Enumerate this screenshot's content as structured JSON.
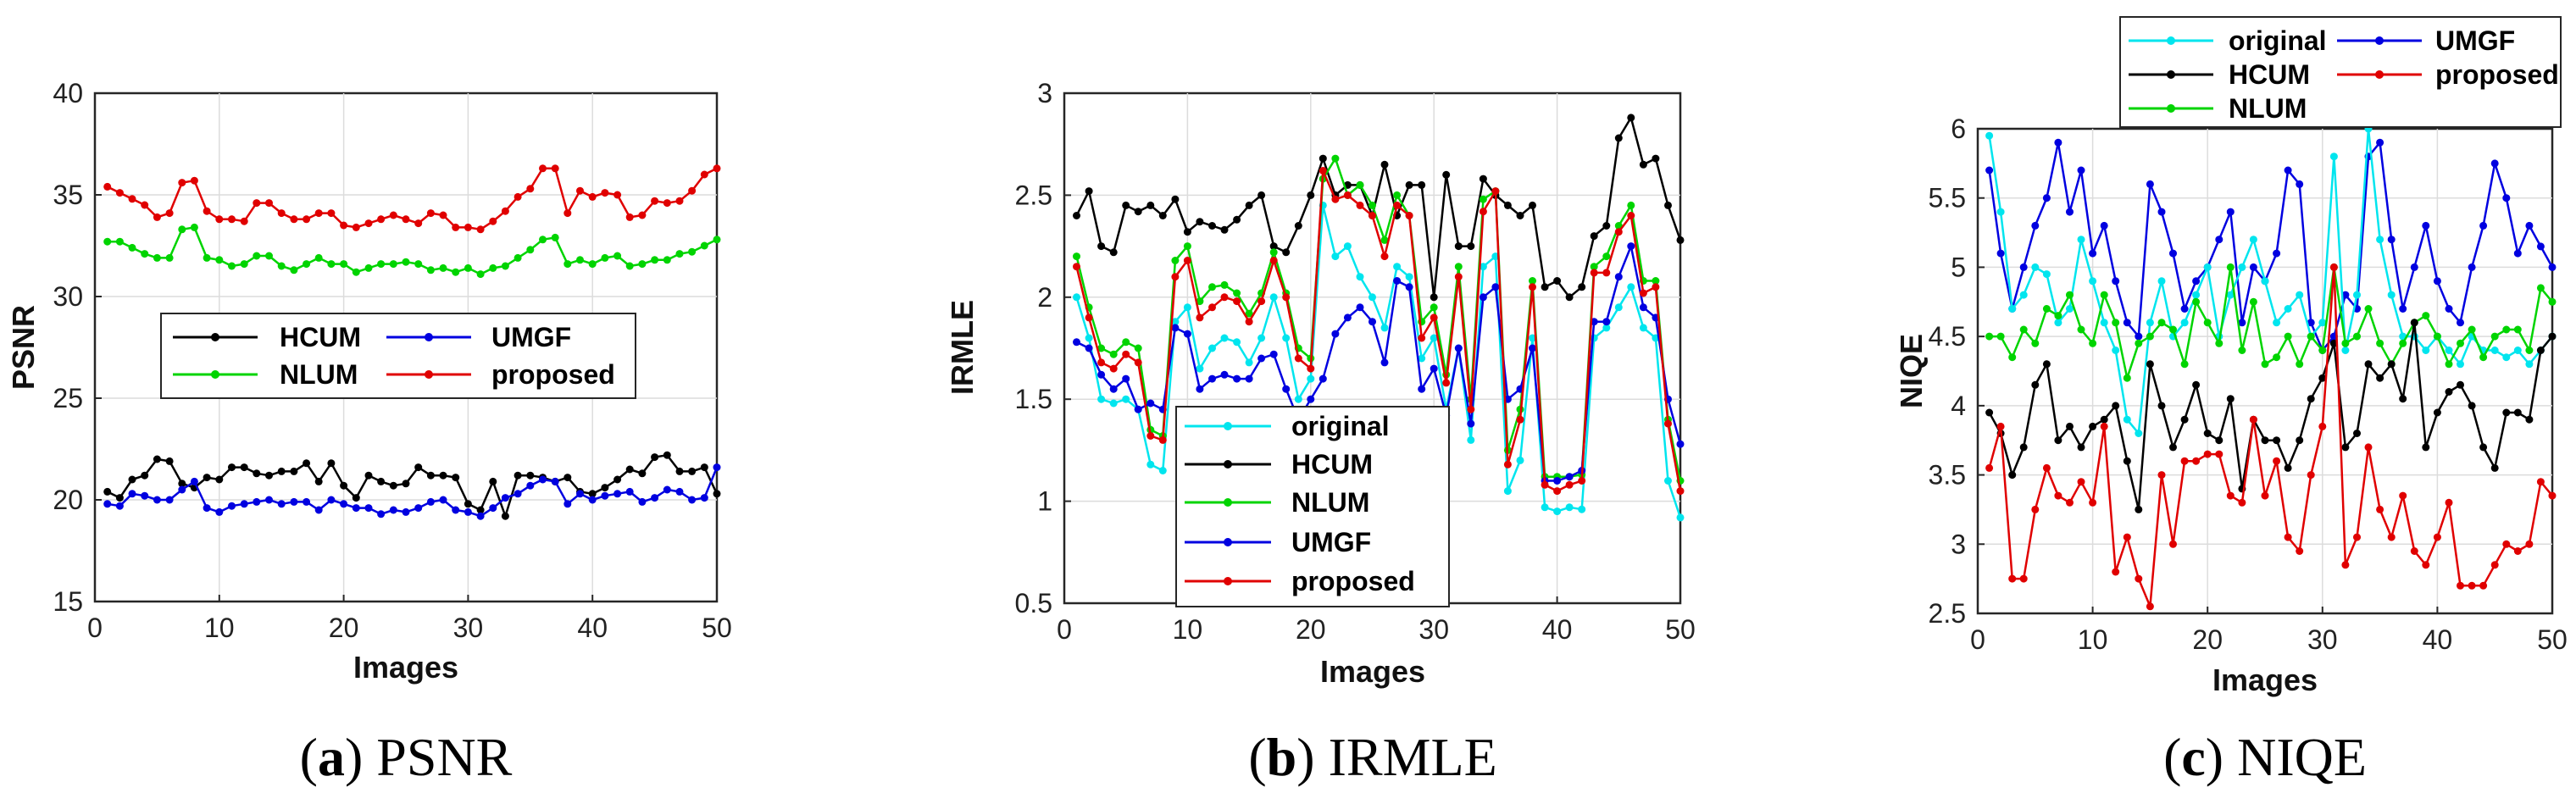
{
  "figure": {
    "panels": [
      {
        "id": "psnr",
        "caption_letter": "a",
        "caption_text": "PSNR"
      },
      {
        "id": "irmle",
        "caption_letter": "b",
        "caption_text": "IRMLE"
      },
      {
        "id": "niqe",
        "caption_letter": "c",
        "caption_text": "NIQE"
      }
    ]
  },
  "colors": {
    "original": "#00e5ee",
    "HCUM": "#000000",
    "NLUM": "#00d400",
    "UMGF": "#0000e0",
    "proposed": "#e00000"
  },
  "chart_data": [
    {
      "type": "line",
      "title": "(a) PSNR",
      "xlabel": "Images",
      "ylabel": "PSNR",
      "xlim": [
        0,
        50
      ],
      "ylim": [
        15,
        40
      ],
      "xticks": [
        0,
        10,
        20,
        30,
        40,
        50
      ],
      "yticks": [
        15,
        20,
        25,
        30,
        35,
        40
      ],
      "grid": true,
      "legend_placement": "center",
      "legend_columns": 2,
      "x": [
        1,
        2,
        3,
        4,
        5,
        6,
        7,
        8,
        9,
        10,
        11,
        12,
        13,
        14,
        15,
        16,
        17,
        18,
        19,
        20,
        21,
        22,
        23,
        24,
        25,
        26,
        27,
        28,
        29,
        30,
        31,
        32,
        33,
        34,
        35,
        36,
        37,
        38,
        39,
        40,
        41,
        42,
        43,
        44,
        45,
        46,
        47,
        48,
        49,
        50
      ],
      "series": [
        {
          "name": "HCUM",
          "values": [
            20.4,
            20.1,
            21.0,
            21.2,
            22.0,
            21.9,
            20.8,
            20.6,
            21.1,
            21.0,
            21.6,
            21.6,
            21.3,
            21.2,
            21.4,
            21.4,
            21.8,
            20.9,
            21.8,
            20.7,
            20.1,
            21.2,
            20.9,
            20.7,
            20.8,
            21.6,
            21.2,
            21.2,
            21.1,
            19.8,
            19.5,
            20.9,
            19.2,
            21.2,
            21.2,
            21.1,
            20.9,
            21.1,
            20.4,
            20.3,
            20.6,
            21.0,
            21.5,
            21.3,
            22.1,
            22.2,
            21.4,
            21.4,
            21.6,
            20.3
          ]
        },
        {
          "name": "UMGF",
          "values": [
            19.8,
            19.7,
            20.3,
            20.2,
            20.0,
            20.0,
            20.5,
            20.9,
            19.6,
            19.4,
            19.7,
            19.8,
            19.9,
            20.0,
            19.8,
            19.9,
            19.9,
            19.5,
            20.0,
            19.8,
            19.6,
            19.6,
            19.3,
            19.5,
            19.4,
            19.6,
            19.9,
            20.0,
            19.5,
            19.4,
            19.2,
            19.6,
            20.1,
            20.3,
            20.7,
            21.0,
            20.9,
            19.8,
            20.3,
            20.0,
            20.2,
            20.3,
            20.4,
            19.9,
            20.1,
            20.5,
            20.4,
            20.0,
            20.1,
            21.6
          ]
        },
        {
          "name": "NLUM",
          "values": [
            32.7,
            32.7,
            32.4,
            32.1,
            31.9,
            31.9,
            33.3,
            33.4,
            31.9,
            31.8,
            31.5,
            31.6,
            32.0,
            32.0,
            31.5,
            31.3,
            31.6,
            31.9,
            31.6,
            31.6,
            31.2,
            31.4,
            31.6,
            31.6,
            31.7,
            31.6,
            31.3,
            31.4,
            31.2,
            31.4,
            31.1,
            31.4,
            31.5,
            31.9,
            32.3,
            32.8,
            32.9,
            31.6,
            31.8,
            31.6,
            31.9,
            32.0,
            31.5,
            31.6,
            31.8,
            31.8,
            32.1,
            32.2,
            32.5,
            32.8
          ]
        },
        {
          "name": "proposed",
          "values": [
            35.4,
            35.1,
            34.8,
            34.5,
            33.9,
            34.1,
            35.6,
            35.7,
            34.2,
            33.8,
            33.8,
            33.7,
            34.6,
            34.6,
            34.1,
            33.8,
            33.8,
            34.1,
            34.1,
            33.5,
            33.4,
            33.6,
            33.8,
            34.0,
            33.8,
            33.6,
            34.1,
            34.0,
            33.4,
            33.4,
            33.3,
            33.7,
            34.2,
            34.9,
            35.3,
            36.3,
            36.3,
            34.1,
            35.2,
            34.9,
            35.1,
            35.0,
            33.9,
            34.0,
            34.7,
            34.6,
            34.7,
            35.2,
            36.0,
            36.3
          ]
        }
      ]
    },
    {
      "type": "line",
      "title": "(b) IRMLE",
      "xlabel": "Images",
      "ylabel": "IRMLE",
      "xlim": [
        0,
        50
      ],
      "ylim": [
        0.5,
        3
      ],
      "xticks": [
        0,
        10,
        20,
        30,
        40,
        50
      ],
      "yticks": [
        0.5,
        1,
        1.5,
        2,
        2.5,
        3
      ],
      "grid": true,
      "legend_placement": "lower-center",
      "legend_columns": 1,
      "x": [
        1,
        2,
        3,
        4,
        5,
        6,
        7,
        8,
        9,
        10,
        11,
        12,
        13,
        14,
        15,
        16,
        17,
        18,
        19,
        20,
        21,
        22,
        23,
        24,
        25,
        26,
        27,
        28,
        29,
        30,
        31,
        32,
        33,
        34,
        35,
        36,
        37,
        38,
        39,
        40,
        41,
        42,
        43,
        44,
        45,
        46,
        47,
        48,
        49,
        50
      ],
      "series": [
        {
          "name": "original",
          "values": [
            2.0,
            1.8,
            1.5,
            1.48,
            1.5,
            1.45,
            1.18,
            1.15,
            1.88,
            1.95,
            1.65,
            1.75,
            1.8,
            1.78,
            1.68,
            1.8,
            2.0,
            1.8,
            1.5,
            1.6,
            2.45,
            2.2,
            2.25,
            2.1,
            2.0,
            1.85,
            2.15,
            2.1,
            1.7,
            1.8,
            1.45,
            1.75,
            1.3,
            2.15,
            2.2,
            1.05,
            1.2,
            1.8,
            0.97,
            0.95,
            0.97,
            0.96,
            1.8,
            1.85,
            1.95,
            2.05,
            1.85,
            1.8,
            1.1,
            0.92
          ]
        },
        {
          "name": "HCUM",
          "values": [
            2.4,
            2.52,
            2.25,
            2.22,
            2.45,
            2.42,
            2.45,
            2.4,
            2.48,
            2.32,
            2.37,
            2.35,
            2.33,
            2.38,
            2.45,
            2.5,
            2.25,
            2.22,
            2.35,
            2.5,
            2.68,
            2.5,
            2.55,
            2.55,
            2.4,
            2.65,
            2.4,
            2.55,
            2.55,
            2.0,
            2.6,
            2.25,
            2.25,
            2.58,
            2.5,
            2.45,
            2.4,
            2.45,
            2.05,
            2.08,
            2.0,
            2.05,
            2.3,
            2.35,
            2.78,
            2.88,
            2.65,
            2.68,
            2.45,
            2.28
          ]
        },
        {
          "name": "NLUM",
          "values": [
            2.2,
            1.95,
            1.75,
            1.72,
            1.78,
            1.75,
            1.35,
            1.32,
            2.18,
            2.25,
            1.98,
            2.05,
            2.06,
            2.02,
            1.92,
            2.02,
            2.22,
            2.02,
            1.75,
            1.7,
            2.58,
            2.68,
            2.5,
            2.55,
            2.45,
            2.28,
            2.5,
            2.4,
            1.88,
            1.95,
            1.62,
            2.15,
            1.5,
            2.48,
            2.52,
            1.25,
            1.45,
            2.08,
            1.12,
            1.12,
            1.12,
            1.13,
            2.15,
            2.2,
            2.35,
            2.45,
            2.08,
            2.08,
            1.4,
            1.1
          ]
        },
        {
          "name": "UMGF",
          "values": [
            1.78,
            1.75,
            1.62,
            1.55,
            1.6,
            1.45,
            1.48,
            1.45,
            1.85,
            1.82,
            1.55,
            1.6,
            1.62,
            1.6,
            1.6,
            1.7,
            1.72,
            1.55,
            1.4,
            1.5,
            1.6,
            1.82,
            1.9,
            1.95,
            1.88,
            1.68,
            2.08,
            2.05,
            1.55,
            1.65,
            1.42,
            1.75,
            1.38,
            2.0,
            2.05,
            1.5,
            1.55,
            1.75,
            1.1,
            1.1,
            1.12,
            1.15,
            1.88,
            1.88,
            2.1,
            2.25,
            1.95,
            1.9,
            1.5,
            1.28
          ]
        },
        {
          "name": "proposed",
          "values": [
            2.15,
            1.9,
            1.68,
            1.65,
            1.72,
            1.68,
            1.32,
            1.3,
            2.1,
            2.18,
            1.9,
            1.95,
            2.0,
            1.98,
            1.88,
            1.98,
            2.18,
            2.0,
            1.7,
            1.65,
            2.62,
            2.48,
            2.5,
            2.45,
            2.4,
            2.2,
            2.45,
            2.4,
            1.8,
            1.9,
            1.58,
            2.1,
            1.45,
            2.42,
            2.52,
            1.18,
            1.4,
            2.05,
            1.08,
            1.05,
            1.08,
            1.1,
            2.12,
            2.12,
            2.32,
            2.4,
            2.02,
            2.05,
            1.38,
            1.05
          ]
        }
      ]
    },
    {
      "type": "line",
      "title": "(c) NIQE",
      "xlabel": "Images",
      "ylabel": "NIQE",
      "xlim": [
        0,
        50
      ],
      "ylim": [
        2.5,
        6
      ],
      "xticks": [
        0,
        10,
        20,
        30,
        40,
        50
      ],
      "yticks": [
        2.5,
        3,
        3.5,
        4,
        4.5,
        5,
        5.5,
        6
      ],
      "grid": true,
      "legend_placement": "top (outside)",
      "legend_columns": 2,
      "x": [
        1,
        2,
        3,
        4,
        5,
        6,
        7,
        8,
        9,
        10,
        11,
        12,
        13,
        14,
        15,
        16,
        17,
        18,
        19,
        20,
        21,
        22,
        23,
        24,
        25,
        26,
        27,
        28,
        29,
        30,
        31,
        32,
        33,
        34,
        35,
        36,
        37,
        38,
        39,
        40,
        41,
        42,
        43,
        44,
        45,
        46,
        47,
        48,
        49,
        50
      ],
      "series": [
        {
          "name": "original",
          "values": [
            5.95,
            5.4,
            4.7,
            4.8,
            5.0,
            4.95,
            4.6,
            4.7,
            5.2,
            4.9,
            4.6,
            4.4,
            3.9,
            3.8,
            4.6,
            4.9,
            4.5,
            4.6,
            4.8,
            5.0,
            4.5,
            4.8,
            5.0,
            5.2,
            4.9,
            4.6,
            4.7,
            4.8,
            4.5,
            4.6,
            5.8,
            4.4,
            4.8,
            6.0,
            5.2,
            4.8,
            4.5,
            4.5,
            4.4,
            4.5,
            4.4,
            4.3,
            4.5,
            4.4,
            4.4,
            4.35,
            4.4,
            4.3,
            4.4,
            4.5
          ]
        },
        {
          "name": "HCUM",
          "values": [
            3.95,
            3.8,
            3.5,
            3.7,
            4.15,
            4.3,
            3.75,
            3.85,
            3.7,
            3.85,
            3.9,
            4.0,
            3.6,
            3.25,
            4.3,
            4.0,
            3.7,
            3.9,
            4.15,
            3.8,
            3.75,
            4.05,
            3.4,
            3.9,
            3.75,
            3.75,
            3.55,
            3.75,
            4.05,
            4.2,
            4.45,
            3.7,
            3.8,
            4.3,
            4.2,
            4.3,
            4.05,
            4.6,
            3.7,
            3.95,
            4.1,
            4.15,
            4.0,
            3.7,
            3.55,
            3.95,
            3.95,
            3.9,
            4.4,
            4.5
          ]
        },
        {
          "name": "NLUM",
          "values": [
            4.5,
            4.5,
            4.35,
            4.55,
            4.45,
            4.7,
            4.65,
            4.8,
            4.55,
            4.45,
            4.8,
            4.6,
            4.2,
            4.45,
            4.5,
            4.6,
            4.55,
            4.3,
            4.75,
            4.6,
            4.45,
            5.0,
            4.4,
            4.75,
            4.3,
            4.35,
            4.5,
            4.3,
            4.5,
            4.4,
            5.0,
            4.45,
            4.5,
            4.7,
            4.45,
            4.3,
            4.45,
            4.6,
            4.65,
            4.5,
            4.3,
            4.45,
            4.55,
            4.35,
            4.5,
            4.55,
            4.55,
            4.4,
            4.85,
            4.75
          ]
        },
        {
          "name": "UMGF",
          "values": [
            5.7,
            5.1,
            4.7,
            5.0,
            5.3,
            5.5,
            5.9,
            5.4,
            5.7,
            5.1,
            5.3,
            4.9,
            4.6,
            4.5,
            5.6,
            5.4,
            5.1,
            4.7,
            4.9,
            5.0,
            5.2,
            5.4,
            4.6,
            5.0,
            4.9,
            5.1,
            5.7,
            5.6,
            4.6,
            4.4,
            4.5,
            4.8,
            4.7,
            5.8,
            5.9,
            5.2,
            4.7,
            5.0,
            5.3,
            4.9,
            4.7,
            4.6,
            5.0,
            5.3,
            5.75,
            5.5,
            5.1,
            5.3,
            5.15,
            5.0
          ]
        },
        {
          "name": "proposed",
          "values": [
            3.55,
            3.85,
            2.75,
            2.75,
            3.25,
            3.55,
            3.35,
            3.3,
            3.45,
            3.3,
            3.85,
            2.8,
            3.05,
            2.75,
            2.55,
            3.5,
            3.0,
            3.6,
            3.6,
            3.65,
            3.65,
            3.35,
            3.3,
            3.9,
            3.35,
            3.6,
            3.05,
            2.95,
            3.5,
            3.85,
            5.0,
            2.85,
            3.05,
            3.7,
            3.25,
            3.05,
            3.35,
            2.95,
            2.85,
            3.05,
            3.3,
            2.7,
            2.7,
            2.7,
            2.85,
            3.0,
            2.95,
            3.0,
            3.45,
            3.35
          ]
        }
      ]
    }
  ]
}
